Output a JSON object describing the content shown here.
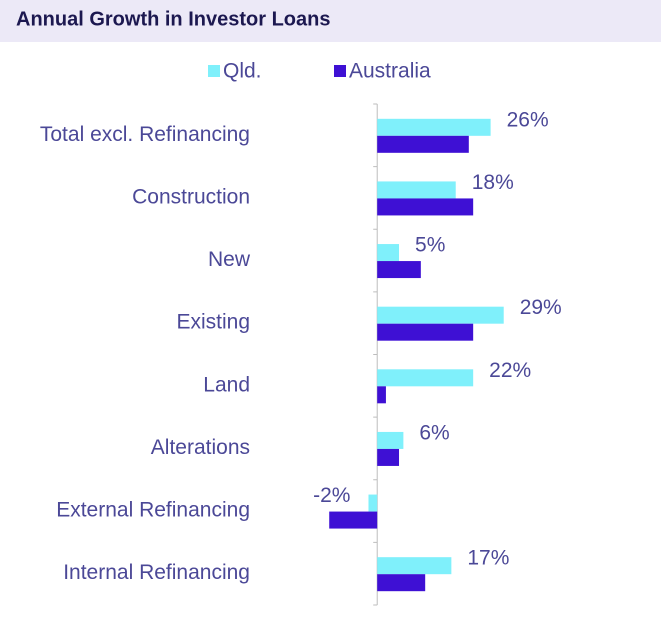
{
  "chart_data": {
    "type": "hbar",
    "title": "Annual Growth in Investor Loans",
    "categories": [
      "Total excl. Refinancing",
      "Construction",
      "New",
      "Existing",
      "Land",
      "Alterations",
      "External Refinancing",
      "Internal Refinancing"
    ],
    "series": [
      {
        "name": "Qld.",
        "color": "#7ff0fb",
        "values": [
          26,
          18,
          5,
          29,
          22,
          6,
          -2,
          17
        ],
        "value_labels": [
          "26%",
          "18%",
          "5%",
          "29%",
          "22%",
          "6%",
          "-2%",
          "17%"
        ]
      },
      {
        "name": "Australia",
        "color": "#3e10d4",
        "values": [
          21,
          22,
          10,
          22,
          2,
          5,
          -11,
          11
        ]
      }
    ],
    "xlim": [
      -13,
      45
    ],
    "legend": "top"
  }
}
